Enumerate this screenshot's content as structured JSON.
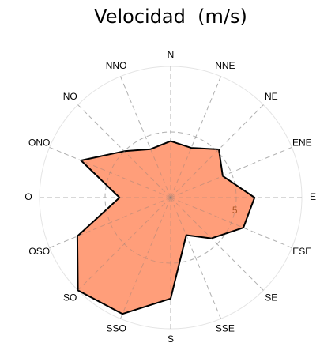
{
  "chart_data": {
    "type": "radar",
    "title": "Velocidad  (m/s)",
    "categories": [
      "N",
      "NNE",
      "NE",
      "ENE",
      "E",
      "ESE",
      "SE",
      "SSE",
      "S",
      "SSO",
      "SO",
      "OSO",
      "O",
      "ONO",
      "NO",
      "NNO"
    ],
    "values": [
      4.3,
      4.1,
      5.2,
      4.3,
      6.4,
      6.0,
      4.4,
      3.1,
      7.7,
      9.6,
      10.0,
      7.7,
      3.9,
      7.4,
      5.0,
      4.0
    ],
    "color": "#ff9e7a",
    "rlim": [
      0,
      10
    ],
    "rticks": [
      5
    ],
    "grid": true
  }
}
